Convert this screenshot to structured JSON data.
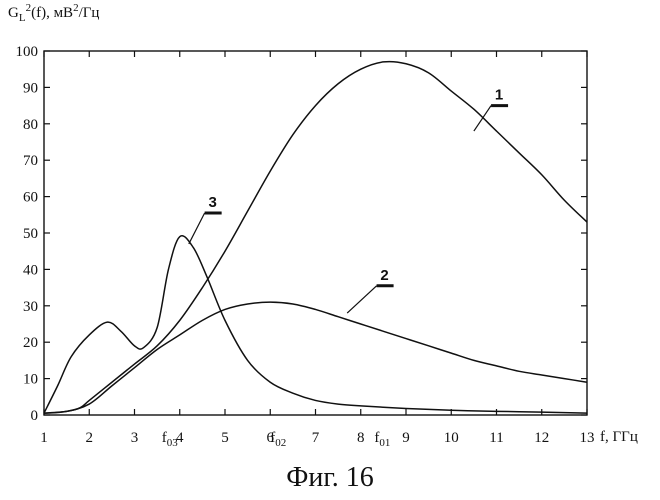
{
  "chart_data": {
    "type": "line",
    "ylabel": {
      "main": "G",
      "sub": "L",
      "sup": "2",
      "rest": "(f), мВ",
      "unit_sup": "2",
      "unit_rest": "/Гц"
    },
    "xlabel": "f, ГГц",
    "xlim": [
      1,
      13
    ],
    "ylim": [
      0,
      100
    ],
    "xticks": [
      1,
      2,
      3,
      4,
      5,
      6,
      7,
      8,
      9,
      10,
      11,
      12,
      13
    ],
    "yticks": [
      0,
      10,
      20,
      30,
      40,
      50,
      60,
      70,
      80,
      90,
      100
    ],
    "grid": false,
    "series": [
      {
        "name": "1",
        "x": [
          1,
          1.5,
          1.8,
          2,
          2.5,
          3,
          3.5,
          4,
          4.5,
          5,
          5.5,
          6,
          6.5,
          7,
          7.5,
          8,
          8.5,
          9,
          9.5,
          10,
          10.5,
          11,
          11.5,
          12,
          12.5,
          13
        ],
        "y": [
          0.5,
          1,
          2,
          4,
          9,
          14,
          19,
          26,
          35,
          45,
          56,
          67,
          77,
          85,
          91,
          95,
          97,
          96.5,
          94,
          89,
          84,
          78,
          72,
          66,
          59,
          53
        ]
      },
      {
        "name": "2",
        "x": [
          1,
          1.5,
          2,
          2.5,
          3,
          3.5,
          4,
          4.5,
          5,
          5.5,
          6,
          6.5,
          7,
          7.5,
          8,
          8.5,
          9,
          9.5,
          10,
          10.5,
          11,
          11.5,
          12,
          12.5,
          13
        ],
        "y": [
          0.5,
          1,
          3,
          8,
          13,
          18,
          22,
          26,
          29,
          30.5,
          31,
          30.5,
          29,
          27,
          25,
          23,
          21,
          19,
          17,
          15,
          13.5,
          12,
          11,
          10,
          9
        ]
      },
      {
        "name": "3",
        "x": [
          1,
          1.3,
          1.6,
          2,
          2.4,
          2.7,
          3,
          3.2,
          3.5,
          3.75,
          4,
          4.3,
          4.6,
          5,
          5.5,
          6,
          6.5,
          7,
          7.5,
          8,
          9,
          10,
          11,
          12,
          13
        ],
        "y": [
          0.5,
          8,
          16,
          22,
          25.5,
          23,
          19,
          18.5,
          24,
          40,
          49,
          46,
          38,
          26,
          15,
          9,
          6,
          4,
          3,
          2.5,
          1.8,
          1.3,
          1,
          0.8,
          0.5
        ]
      }
    ],
    "annotations": [
      {
        "text": "f",
        "sub": "03",
        "x": 3.8
      },
      {
        "text": "f",
        "sub": "02",
        "x": 6.2
      },
      {
        "text": "f",
        "sub": "01",
        "x": 8.5
      }
    ],
    "curve_labels": [
      {
        "text": "1",
        "x": 10.5,
        "y": 78,
        "tx": 10.88,
        "ty": 85
      },
      {
        "text": "2",
        "x": 7.7,
        "y": 28,
        "tx": 8.35,
        "ty": 35.5
      },
      {
        "text": "3",
        "x": 4.2,
        "y": 47,
        "tx": 4.55,
        "ty": 55.5
      }
    ]
  },
  "caption": "Фиг. 16"
}
